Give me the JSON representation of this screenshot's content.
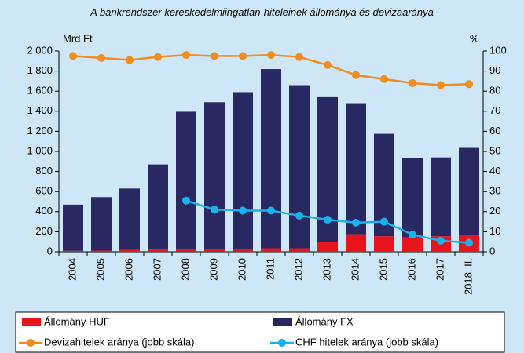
{
  "chart_data": {
    "type": "bar",
    "title": "A bankrendszer kereskedelmiingatlan-hiteleinek állománya és devizaaránya",
    "y_label": "Mrd Ft",
    "y2_label": "%",
    "categories": [
      "2004",
      "2005",
      "2006",
      "2007",
      "2008",
      "2009",
      "2010",
      "2011",
      "2012",
      "2013",
      "2014",
      "2015",
      "2016",
      "2017",
      "2018. II."
    ],
    "series": [
      {
        "name": "Állomány HUF",
        "type": "bar",
        "color": "#e8141b",
        "values": [
          10,
          12,
          18,
          22,
          25,
          30,
          30,
          35,
          35,
          100,
          175,
          155,
          145,
          155,
          165
        ]
      },
      {
        "name": "Állomány FX",
        "type": "bar",
        "color": "#2a2862",
        "values": [
          460,
          533,
          612,
          848,
          1370,
          1460,
          1560,
          1785,
          1625,
          1440,
          1305,
          1020,
          785,
          785,
          870
        ]
      },
      {
        "name": "Devizahitelek aránya (jobb skála)",
        "type": "line",
        "axis": "y2",
        "color": "#f28c1e",
        "values": [
          97.5,
          96.5,
          95.5,
          97,
          98,
          97.5,
          97.5,
          98,
          97,
          93,
          88,
          86,
          84,
          83,
          83.5
        ]
      },
      {
        "name": "CHF hitelek aránya (jobb skála)",
        "type": "line",
        "axis": "y2",
        "color": "#19b2ea",
        "values": [
          null,
          null,
          null,
          null,
          25.5,
          21,
          20.5,
          20.5,
          18,
          16,
          14.5,
          15,
          8.5,
          5.5,
          4.5
        ]
      }
    ],
    "ylim": [
      0,
      2000
    ],
    "yticks": [
      0,
      200,
      400,
      600,
      800,
      {
        "value": 1000,
        "label": "1 000"
      },
      {
        "value": 1200,
        "label": "1 200"
      },
      {
        "value": 1400,
        "label": "1 400"
      },
      {
        "value": 1600,
        "label": "1 600"
      },
      {
        "value": 1800,
        "label": "1 800"
      },
      {
        "value": 2000,
        "label": "2 000"
      }
    ],
    "y2lim": [
      0,
      100
    ],
    "y2ticks": [
      0,
      10,
      20,
      30,
      40,
      50,
      60,
      70,
      80,
      90,
      100
    ],
    "grid": false,
    "legend": "bottom"
  }
}
